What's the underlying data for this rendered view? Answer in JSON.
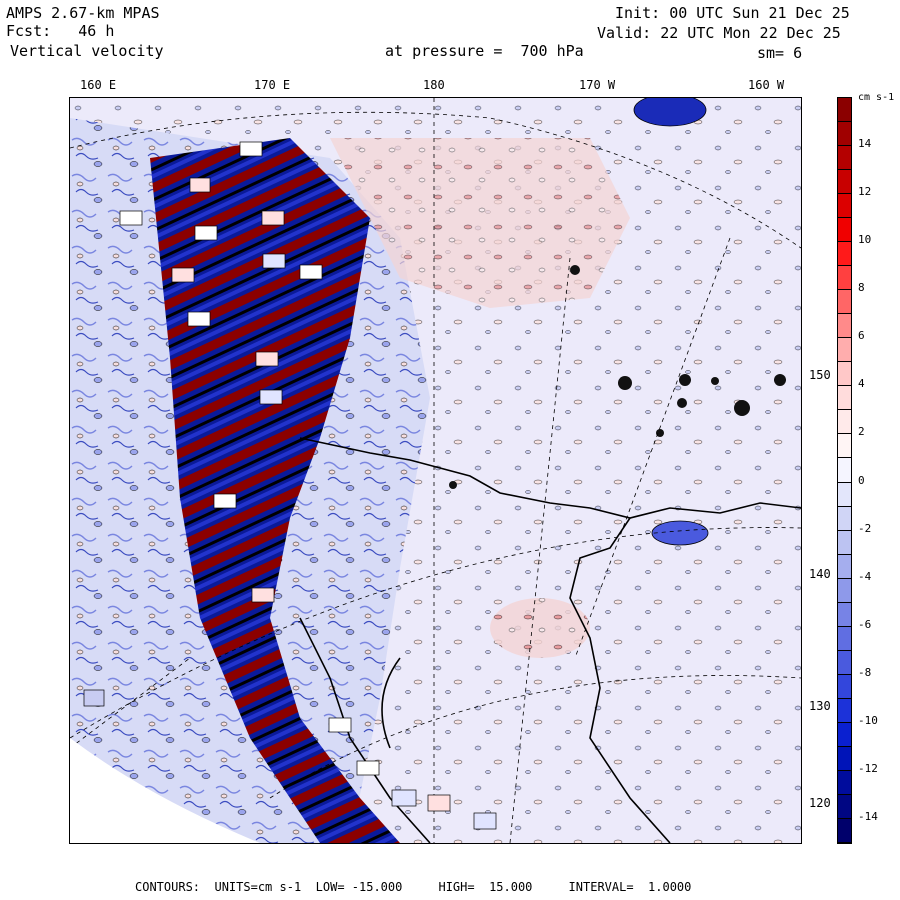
{
  "header": {
    "model": "AMPS 2.67-km MPAS",
    "fcst_label": "Fcst:",
    "fcst_value": "46 h",
    "field": "Vertical velocity",
    "level_label": "at pressure =",
    "level_value": "700 hPa",
    "init_label": "Init:",
    "init_value": "00 UTC Sun 21 Dec 25",
    "valid_label": "Valid:",
    "valid_value": "22 UTC Mon 22 Dec 25",
    "smoothing": "sm= 6"
  },
  "map": {
    "top_lon_labels": [
      "160 E",
      "170 E",
      "180",
      "170 W",
      "160 W"
    ],
    "right_lat_labels": [
      "150 W",
      "140 W",
      "130 W",
      "120 W"
    ],
    "colors": {
      "strong_neg": "#00008b",
      "mid_neg": "#3b4cc0",
      "light_neg": "#c8ccf2",
      "neutral": "#f2eef2",
      "light_pos": "#f5c8c8",
      "strong_pos": "#8b0000",
      "coast": "#000000"
    }
  },
  "colorbar": {
    "units": "cm s-1",
    "tick_labels": [
      "14",
      "12",
      "10",
      "8",
      "6",
      "4",
      "2",
      "0",
      "-2",
      "-4",
      "-6",
      "-8",
      "-10",
      "-12",
      "-14"
    ],
    "segment_colors": [
      "#8b0000",
      "#a00000",
      "#b40000",
      "#c80000",
      "#dc0000",
      "#f00000",
      "#ff1a1a",
      "#ff4040",
      "#ff6666",
      "#ff8a8a",
      "#ffadad",
      "#ffc8c8",
      "#ffdcdc",
      "#ffeaea",
      "#fff5f5",
      "#f5f5ff",
      "#e3e6fb",
      "#d0d5f6",
      "#bcc3f2",
      "#a5aeee",
      "#8e99ea",
      "#7783e6",
      "#606ee2",
      "#4a5ade",
      "#3346dc",
      "#1c32d9",
      "#0a20d0",
      "#0014b8",
      "#000c9c",
      "#000683",
      "#00006b"
    ]
  },
  "footer": {
    "contours_label": "CONTOURS:",
    "units_label": "UNITS=cm s-1",
    "low_label": "LOW=",
    "low_value": "-15.000",
    "high_label": "HIGH=",
    "high_value": "15.000",
    "interval_label": "INTERVAL=",
    "interval_value": "1.0000"
  }
}
